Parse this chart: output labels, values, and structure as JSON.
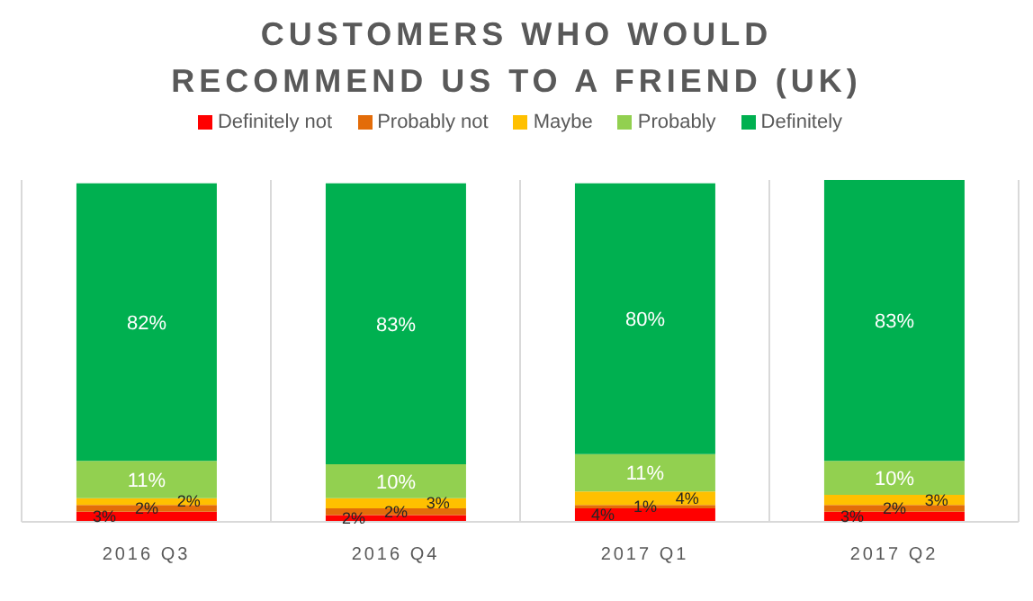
{
  "chart_data": {
    "type": "bar",
    "title": "CUSTOMERS WHO WOULD RECOMMEND US TO A FRIEND (UK)",
    "categories": [
      "2016 Q3",
      "2016 Q4",
      "2017 Q1",
      "2017 Q2"
    ],
    "stacked": true,
    "grid": "x",
    "legend": "top",
    "series": [
      {
        "name": "Definitely not",
        "color": "#ff0000",
        "values": [
          3,
          2,
          4,
          3
        ],
        "value_labels": [
          "3%",
          "2%",
          "4%",
          "3%"
        ]
      },
      {
        "name": "Probably not",
        "color": "#e36c09",
        "values": [
          2,
          2,
          1,
          2
        ],
        "value_labels": [
          "2%",
          "2%",
          "1%",
          "2%"
        ]
      },
      {
        "name": "Maybe",
        "color": "#ffc000",
        "values": [
          2,
          3,
          4,
          3
        ],
        "value_labels": [
          "2%",
          "3%",
          "4%",
          "3%"
        ]
      },
      {
        "name": "Probably",
        "color": "#92d050",
        "values": [
          11,
          10,
          11,
          10
        ],
        "value_labels": [
          "11%",
          "10%",
          "11%",
          "10%"
        ]
      },
      {
        "name": "Definitely",
        "color": "#00b050",
        "values": [
          82,
          83,
          80,
          83
        ],
        "value_labels": [
          "82%",
          "83%",
          "80%",
          "83%"
        ]
      }
    ]
  }
}
